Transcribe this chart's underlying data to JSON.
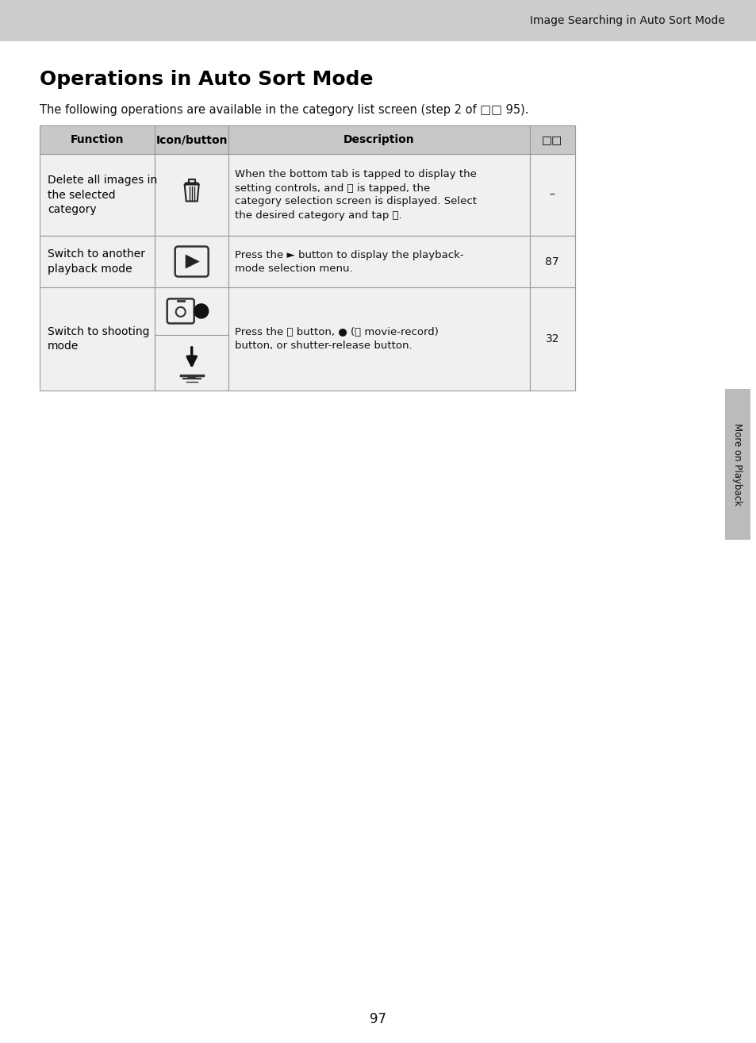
{
  "page_title": "Image Searching in Auto Sort Mode",
  "section_title": "Operations in Auto Sort Mode",
  "subtitle": "The following operations are available in the category list screen (step 2 of □□ 95).",
  "page_number": "97",
  "sidebar_text": "More on Playback",
  "bg_color": "#f0f0f0",
  "header_bg": "#cccccc",
  "table_header_bg": "#c8c8c8",
  "table_row_bg": "#f0f0f0",
  "table_border": "#999999",
  "col_headers": [
    "Function",
    "Icon/button",
    "Description",
    "□□"
  ],
  "rows": [
    {
      "function": "Delete all images in\nthe selected\ncategory",
      "description": "When the bottom tab is tapped to display the\nsetting controls, and Ⓖ is tapped, the\ncategory selection screen is displayed. Select\nthe desired category and tap Ⓔ.",
      "ref": "–"
    },
    {
      "function": "Switch to another\nplayback mode",
      "description": "Press the ► button to display the playback-\nmode selection menu.",
      "ref": "87"
    },
    {
      "function": "Switch to shooting\nmode",
      "description": "Press the Ⓕ button, ● (Ⓗ movie-record)\nbutton, or shutter-release button.",
      "ref": "32"
    }
  ]
}
